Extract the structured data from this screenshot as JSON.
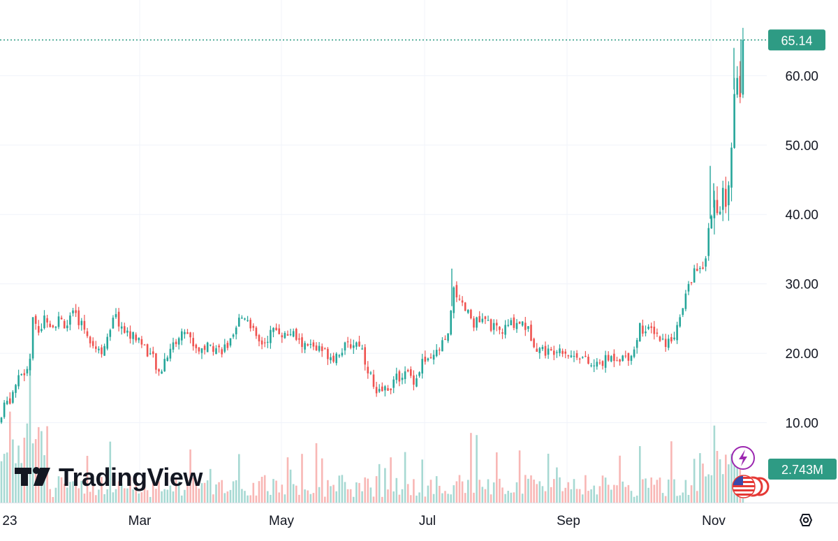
{
  "chart_data": {
    "type": "candlestick",
    "price_axis": {
      "ticks": [
        "10.00",
        "20.00",
        "30.00",
        "40.00",
        "50.00",
        "60.00"
      ],
      "tick_values": [
        10,
        20,
        30,
        40,
        50,
        60
      ],
      "ylim": [
        0.5,
        70.9
      ]
    },
    "time_axis": {
      "tick_labels": [
        "23",
        "Mar",
        "May",
        "Jul",
        "Sep",
        "Nov"
      ]
    },
    "last_price": {
      "value": 65.14,
      "label": "65.14"
    },
    "last_volume": {
      "label": "2.743M"
    },
    "colors": {
      "up": "#26a69a",
      "down": "#ef5350",
      "up_volume": "#a7d9d3",
      "down_volume": "#f8b7b5",
      "last_price": "#2e9b84",
      "grid": "#f0f3fa",
      "axis_text": "#131722"
    },
    "grid": true,
    "price_path": [
      [
        0,
        10
      ],
      [
        8,
        13
      ],
      [
        15,
        13.5
      ],
      [
        25,
        16
      ],
      [
        35,
        17
      ],
      [
        42,
        18.5
      ],
      [
        47,
        25
      ],
      [
        55,
        23
      ],
      [
        65,
        25.5
      ],
      [
        75,
        24
      ],
      [
        85,
        25
      ],
      [
        95,
        24
      ],
      [
        105,
        25.5
      ],
      [
        115,
        24.5
      ],
      [
        125,
        23
      ],
      [
        135,
        21
      ],
      [
        145,
        20.5
      ],
      [
        155,
        22
      ],
      [
        165,
        25.5
      ],
      [
        172,
        24
      ],
      [
        180,
        23
      ],
      [
        190,
        22.5
      ],
      [
        200,
        22
      ],
      [
        210,
        20.5
      ],
      [
        220,
        19
      ],
      [
        228,
        16.5
      ],
      [
        235,
        19
      ],
      [
        245,
        21
      ],
      [
        255,
        22
      ],
      [
        265,
        23.5
      ],
      [
        275,
        21.5
      ],
      [
        285,
        20.5
      ],
      [
        295,
        21
      ],
      [
        305,
        21
      ],
      [
        315,
        20.5
      ],
      [
        325,
        21
      ],
      [
        335,
        22
      ],
      [
        343,
        25
      ],
      [
        352,
        25.5
      ],
      [
        360,
        24
      ],
      [
        368,
        21.5
      ],
      [
        378,
        21.5
      ],
      [
        388,
        23
      ],
      [
        398,
        23.5
      ],
      [
        408,
        22.5
      ],
      [
        418,
        23
      ],
      [
        428,
        21.5
      ],
      [
        438,
        21
      ],
      [
        448,
        21
      ],
      [
        458,
        20.5
      ],
      [
        468,
        20
      ],
      [
        478,
        19.5
      ],
      [
        488,
        20.5
      ],
      [
        498,
        21
      ],
      [
        508,
        21.5
      ],
      [
        516,
        21.5
      ],
      [
        524,
        18.5
      ],
      [
        532,
        16.5
      ],
      [
        538,
        13.5
      ],
      [
        545,
        14.5
      ],
      [
        555,
        15
      ],
      [
        565,
        16
      ],
      [
        575,
        17
      ],
      [
        585,
        17
      ],
      [
        595,
        16
      ],
      [
        605,
        19
      ],
      [
        615,
        18.5
      ],
      [
        625,
        20
      ],
      [
        635,
        21.5
      ],
      [
        643,
        22.5
      ],
      [
        650,
        30
      ],
      [
        658,
        27
      ],
      [
        668,
        26
      ],
      [
        678,
        24.5
      ],
      [
        688,
        24.5
      ],
      [
        698,
        24.5
      ],
      [
        708,
        23.5
      ],
      [
        718,
        23
      ],
      [
        728,
        24
      ],
      [
        738,
        24.5
      ],
      [
        748,
        24.5
      ],
      [
        758,
        23
      ],
      [
        768,
        21
      ],
      [
        778,
        20.5
      ],
      [
        788,
        20
      ],
      [
        798,
        21
      ],
      [
        808,
        20.5
      ],
      [
        818,
        19.5
      ],
      [
        828,
        20
      ],
      [
        838,
        19
      ],
      [
        848,
        18
      ],
      [
        858,
        18.5
      ],
      [
        868,
        19
      ],
      [
        878,
        19.5
      ],
      [
        888,
        19.5
      ],
      [
        898,
        19.5
      ],
      [
        908,
        20.5
      ],
      [
        916,
        24
      ],
      [
        926,
        23
      ],
      [
        936,
        23.5
      ],
      [
        946,
        22
      ],
      [
        956,
        21.5
      ],
      [
        966,
        23
      ],
      [
        976,
        25.5
      ],
      [
        986,
        30
      ],
      [
        996,
        32
      ],
      [
        1006,
        32
      ],
      [
        1012,
        35
      ],
      [
        1016,
        38.5
      ],
      [
        1020,
        42
      ],
      [
        1026,
        39
      ],
      [
        1032,
        41.5
      ],
      [
        1040,
        43
      ],
      [
        1046,
        47
      ],
      [
        1050,
        57
      ],
      [
        1054,
        61
      ],
      [
        1058,
        56
      ],
      [
        1062,
        58
      ],
      [
        1066,
        65.14
      ]
    ],
    "spikes": [
      [
        647,
        32.2
      ],
      [
        1017,
        47
      ],
      [
        1022,
        44.5
      ],
      [
        1051,
        64
      ],
      [
        1061,
        65.1
      ]
    ]
  },
  "branding": {
    "name": "TradingView"
  },
  "icons": {
    "flash": "lightning-bolt-icon",
    "flags": "us-flag-icon",
    "settings": "settings-hexagon-icon"
  }
}
